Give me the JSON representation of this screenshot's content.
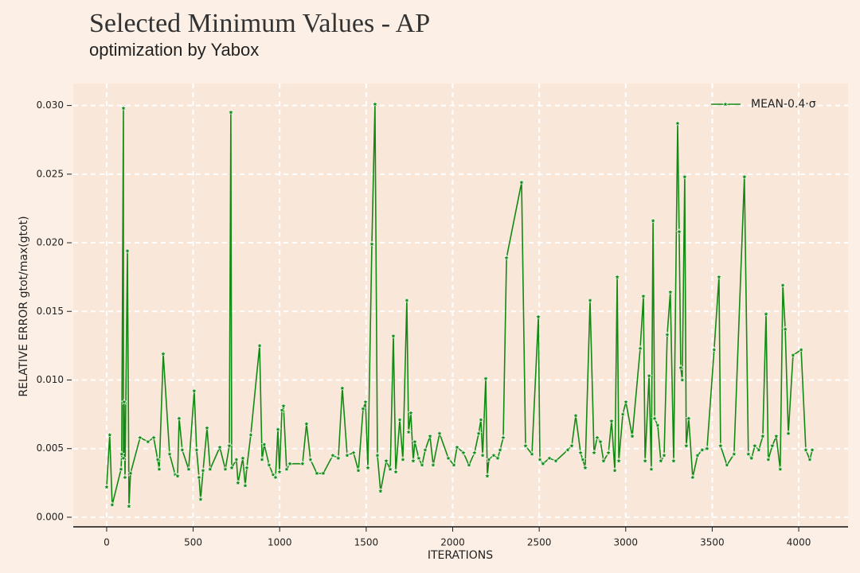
{
  "chart_data": {
    "type": "line",
    "title": "Selected Minimum Values - AP",
    "subtitle": "optimization by Yabox",
    "xlabel": "ITERATIONS",
    "ylabel": "RELATIVE ERROR gtot/max(gtot)",
    "x": [
      0,
      18,
      32,
      83,
      87,
      97,
      97,
      101,
      106,
      120,
      129,
      138,
      193,
      239,
      272,
      295,
      304,
      327,
      364,
      396,
      410,
      419,
      437,
      474,
      506,
      520,
      534,
      543,
      557,
      580,
      598,
      654,
      686,
      709,
      718,
      723,
      750,
      759,
      787,
      801,
      810,
      833,
      884,
      898,
      911,
      939,
      962,
      976,
      990,
      999,
      1013,
      1022,
      1040,
      1059,
      1132,
      1155,
      1178,
      1215,
      1252,
      1307,
      1339,
      1362,
      1390,
      1427,
      1455,
      1482,
      1496,
      1510,
      1533,
      1551,
      1565,
      1583,
      1616,
      1639,
      1657,
      1671,
      1694,
      1712,
      1735,
      1745,
      1758,
      1772,
      1781,
      1804,
      1823,
      1841,
      1869,
      1887,
      1924,
      1975,
      2007,
      2025,
      2062,
      2094,
      2126,
      2150,
      2163,
      2173,
      2191,
      2200,
      2209,
      2237,
      2260,
      2274,
      2292,
      2311,
      2398,
      2421,
      2458,
      2495,
      2504,
      2522,
      2559,
      2596,
      2665,
      2688,
      2711,
      2739,
      2752,
      2766,
      2794,
      2817,
      2835,
      2854,
      2872,
      2900,
      2918,
      2937,
      2951,
      2960,
      2983,
      3001,
      3038,
      3084,
      3102,
      3112,
      3135,
      3148,
      3158,
      3167,
      3185,
      3203,
      3222,
      3240,
      3258,
      3277,
      3300,
      3309,
      3318,
      3327,
      3341,
      3350,
      3364,
      3387,
      3415,
      3442,
      3470,
      3511,
      3539,
      3548,
      3585,
      3626,
      3686,
      3709,
      3727,
      3746,
      3769,
      3792,
      3811,
      3824,
      3847,
      3870,
      3893,
      3908,
      3922,
      3940,
      3967,
      4014,
      4041,
      4064,
      4078
    ],
    "series": [
      {
        "name": "MEAN-0.4·σ",
        "color": "#138a13",
        "values": [
          0.0022,
          0.006,
          0.0009,
          0.0035,
          0.0046,
          0.0298,
          0.0043,
          0.0084,
          0.0029,
          0.0194,
          0.0008,
          0.0032,
          0.0058,
          0.0055,
          0.0058,
          0.0042,
          0.0035,
          0.0119,
          0.0046,
          0.0031,
          0.003,
          0.0072,
          0.0049,
          0.0035,
          0.0092,
          0.0049,
          0.0029,
          0.0013,
          0.0034,
          0.0065,
          0.0035,
          0.0051,
          0.0035,
          0.0052,
          0.0295,
          0.0036,
          0.0042,
          0.0025,
          0.0043,
          0.0023,
          0.0036,
          0.006,
          0.0125,
          0.0042,
          0.0053,
          0.0038,
          0.0031,
          0.0029,
          0.0064,
          0.0033,
          0.0078,
          0.0081,
          0.0035,
          0.0039,
          0.0039,
          0.0068,
          0.0042,
          0.0032,
          0.0032,
          0.0045,
          0.0043,
          0.0094,
          0.0045,
          0.0047,
          0.0034,
          0.0079,
          0.0084,
          0.0036,
          0.0199,
          0.0301,
          0.0045,
          0.0019,
          0.0041,
          0.0035,
          0.0132,
          0.0033,
          0.0071,
          0.0042,
          0.0158,
          0.0062,
          0.0076,
          0.0041,
          0.0055,
          0.0043,
          0.0038,
          0.0049,
          0.0059,
          0.0038,
          0.0061,
          0.0043,
          0.0038,
          0.0051,
          0.0047,
          0.0038,
          0.0047,
          0.0061,
          0.0071,
          0.0045,
          0.0101,
          0.003,
          0.0042,
          0.0045,
          0.0043,
          0.0049,
          0.0058,
          0.0189,
          0.0244,
          0.0052,
          0.0046,
          0.0146,
          0.0042,
          0.0039,
          0.0043,
          0.0041,
          0.0049,
          0.0052,
          0.0074,
          0.0047,
          0.0042,
          0.0036,
          0.0158,
          0.0047,
          0.0058,
          0.0055,
          0.0041,
          0.0047,
          0.007,
          0.0034,
          0.0175,
          0.0041,
          0.0075,
          0.0084,
          0.0059,
          0.0123,
          0.0161,
          0.0041,
          0.0103,
          0.0035,
          0.0216,
          0.0072,
          0.0067,
          0.0041,
          0.0045,
          0.0133,
          0.0164,
          0.0041,
          0.0287,
          0.0208,
          0.0109,
          0.01,
          0.0248,
          0.0052,
          0.0072,
          0.0029,
          0.0045,
          0.0049,
          0.005,
          0.0122,
          0.0175,
          0.0052,
          0.0038,
          0.0046,
          0.0248,
          0.0046,
          0.0043,
          0.0052,
          0.0049,
          0.0059,
          0.0148,
          0.0042,
          0.0052,
          0.0059,
          0.0035,
          0.0169,
          0.0137,
          0.0061,
          0.0118,
          0.0122,
          0.0049,
          0.0042,
          0.0049
        ]
      }
    ],
    "xlim": [
      -193,
      4285
    ],
    "ylim": [
      -0.0007,
      0.0316
    ],
    "xticks": [
      0,
      500,
      1000,
      1500,
      2000,
      2500,
      3000,
      3500,
      4000
    ],
    "yticks": [
      {
        "value": 0,
        "label": "0.000"
      },
      {
        "value": 0.005,
        "label": "0.005"
      },
      {
        "value": 0.01,
        "label": "0.010"
      },
      {
        "value": 0.015,
        "label": "0.015"
      },
      {
        "value": 0.02,
        "label": "0.020"
      },
      {
        "value": 0.025,
        "label": "0.025"
      },
      {
        "value": 0.03,
        "label": "0.030"
      }
    ],
    "grid": true,
    "legend": "upper right"
  }
}
